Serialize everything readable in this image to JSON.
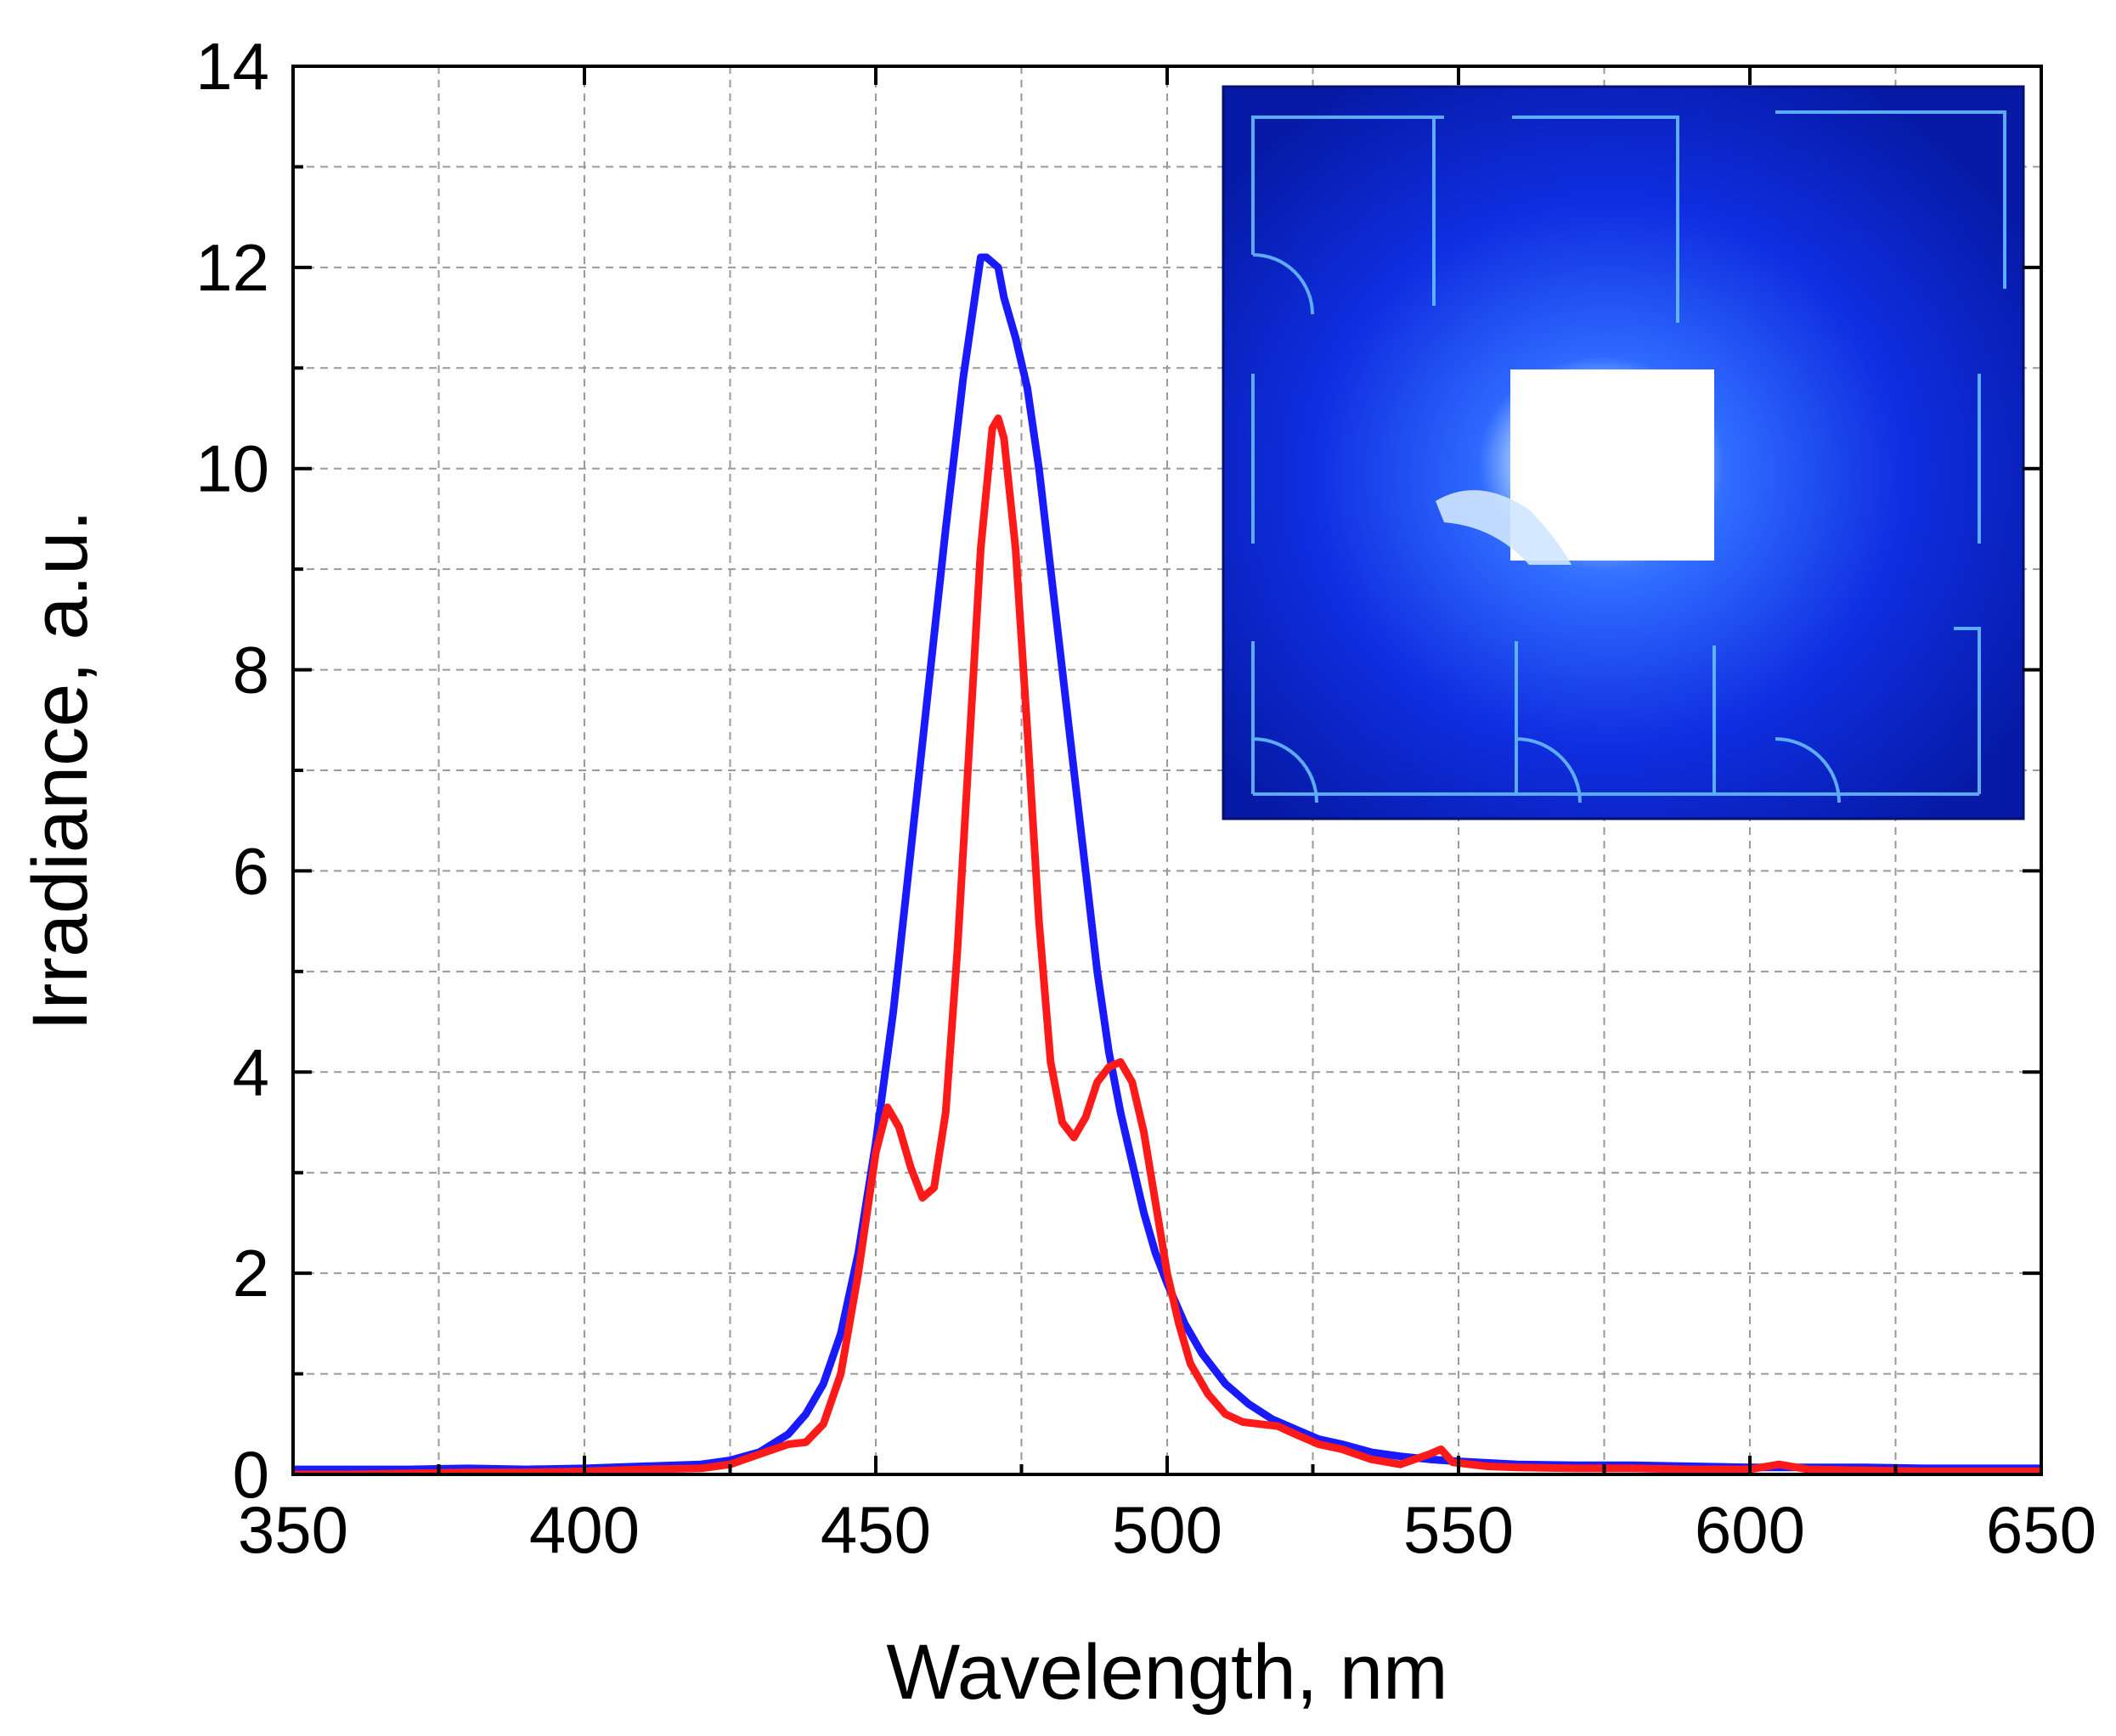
{
  "chart_data": {
    "type": "line",
    "title": "",
    "xlabel": "Wavelength, nm",
    "ylabel": "Irradiance, a.u.",
    "xlim": [
      350,
      650
    ],
    "ylim": [
      0,
      14
    ],
    "x_ticks": [
      350,
      400,
      450,
      500,
      550,
      600,
      650
    ],
    "y_ticks": [
      0,
      2,
      4,
      6,
      8,
      10,
      12,
      14
    ],
    "x_minor_grid": [
      375,
      425,
      475,
      525,
      575,
      625
    ],
    "y_minor_grid": [
      1,
      3,
      5,
      7,
      9,
      11,
      13
    ],
    "grid": true,
    "legend": "none",
    "series": [
      {
        "name": "blue-spectrum",
        "color": "#1a1aff",
        "points": [
          [
            350,
            0.05
          ],
          [
            360,
            0.05
          ],
          [
            370,
            0.05
          ],
          [
            380,
            0.06
          ],
          [
            390,
            0.05
          ],
          [
            400,
            0.06
          ],
          [
            410,
            0.08
          ],
          [
            420,
            0.1
          ],
          [
            425,
            0.14
          ],
          [
            430,
            0.22
          ],
          [
            435,
            0.4
          ],
          [
            438,
            0.6
          ],
          [
            441,
            0.9
          ],
          [
            444,
            1.4
          ],
          [
            447,
            2.2
          ],
          [
            450,
            3.3
          ],
          [
            453,
            4.6
          ],
          [
            456,
            6.2
          ],
          [
            459,
            7.8
          ],
          [
            462,
            9.4
          ],
          [
            465,
            10.9
          ],
          [
            467,
            11.7
          ],
          [
            468,
            12.1
          ],
          [
            469,
            12.1
          ],
          [
            470,
            12.05
          ],
          [
            471,
            12.0
          ],
          [
            472,
            11.7
          ],
          [
            474,
            11.3
          ],
          [
            476,
            10.8
          ],
          [
            478,
            10.0
          ],
          [
            480,
            9.0
          ],
          [
            482,
            8.0
          ],
          [
            484,
            7.0
          ],
          [
            486,
            6.0
          ],
          [
            488,
            5.0
          ],
          [
            490,
            4.2
          ],
          [
            492,
            3.6
          ],
          [
            494,
            3.1
          ],
          [
            496,
            2.6
          ],
          [
            498,
            2.2
          ],
          [
            500,
            1.9
          ],
          [
            503,
            1.5
          ],
          [
            506,
            1.2
          ],
          [
            510,
            0.9
          ],
          [
            514,
            0.7
          ],
          [
            518,
            0.55
          ],
          [
            522,
            0.45
          ],
          [
            526,
            0.35
          ],
          [
            530,
            0.3
          ],
          [
            535,
            0.22
          ],
          [
            540,
            0.18
          ],
          [
            545,
            0.15
          ],
          [
            550,
            0.13
          ],
          [
            560,
            0.1
          ],
          [
            570,
            0.09
          ],
          [
            580,
            0.09
          ],
          [
            590,
            0.08
          ],
          [
            600,
            0.07
          ],
          [
            610,
            0.07
          ],
          [
            620,
            0.07
          ],
          [
            630,
            0.06
          ],
          [
            640,
            0.06
          ],
          [
            650,
            0.06
          ]
        ]
      },
      {
        "name": "red-spectrum",
        "color": "#ff1a1a",
        "points": [
          [
            350,
            0.0
          ],
          [
            360,
            0.0
          ],
          [
            370,
            0.01
          ],
          [
            380,
            0.02
          ],
          [
            390,
            0.02
          ],
          [
            400,
            0.03
          ],
          [
            410,
            0.05
          ],
          [
            420,
            0.06
          ],
          [
            425,
            0.1
          ],
          [
            430,
            0.2
          ],
          [
            435,
            0.3
          ],
          [
            438,
            0.32
          ],
          [
            441,
            0.5
          ],
          [
            444,
            1.0
          ],
          [
            447,
            2.0
          ],
          [
            450,
            3.2
          ],
          [
            452,
            3.65
          ],
          [
            454,
            3.45
          ],
          [
            456,
            3.05
          ],
          [
            458,
            2.75
          ],
          [
            460,
            2.85
          ],
          [
            462,
            3.6
          ],
          [
            464,
            5.2
          ],
          [
            466,
            7.2
          ],
          [
            468,
            9.2
          ],
          [
            470,
            10.4
          ],
          [
            471,
            10.5
          ],
          [
            472,
            10.3
          ],
          [
            474,
            9.2
          ],
          [
            476,
            7.4
          ],
          [
            478,
            5.5
          ],
          [
            480,
            4.1
          ],
          [
            482,
            3.5
          ],
          [
            484,
            3.35
          ],
          [
            486,
            3.55
          ],
          [
            488,
            3.9
          ],
          [
            490,
            4.05
          ],
          [
            492,
            4.1
          ],
          [
            494,
            3.9
          ],
          [
            496,
            3.4
          ],
          [
            498,
            2.7
          ],
          [
            500,
            2.0
          ],
          [
            502,
            1.5
          ],
          [
            504,
            1.1
          ],
          [
            507,
            0.8
          ],
          [
            510,
            0.6
          ],
          [
            513,
            0.52
          ],
          [
            516,
            0.5
          ],
          [
            519,
            0.48
          ],
          [
            522,
            0.4
          ],
          [
            526,
            0.3
          ],
          [
            530,
            0.25
          ],
          [
            535,
            0.15
          ],
          [
            540,
            0.1
          ],
          [
            545,
            0.2
          ],
          [
            547,
            0.25
          ],
          [
            549,
            0.12
          ],
          [
            555,
            0.08
          ],
          [
            560,
            0.07
          ],
          [
            570,
            0.06
          ],
          [
            580,
            0.06
          ],
          [
            590,
            0.05
          ],
          [
            600,
            0.05
          ],
          [
            605,
            0.1
          ],
          [
            610,
            0.05
          ],
          [
            620,
            0.04
          ],
          [
            630,
            0.03
          ],
          [
            640,
            0.03
          ],
          [
            650,
            0.03
          ]
        ]
      }
    ],
    "inset": {
      "type": "photograph",
      "description_hidden": true,
      "background": "#0a18c8",
      "glow_color": "#2f6bff",
      "hot_color": "#ffffff",
      "cell_border_color": "#5fb6ff"
    }
  }
}
